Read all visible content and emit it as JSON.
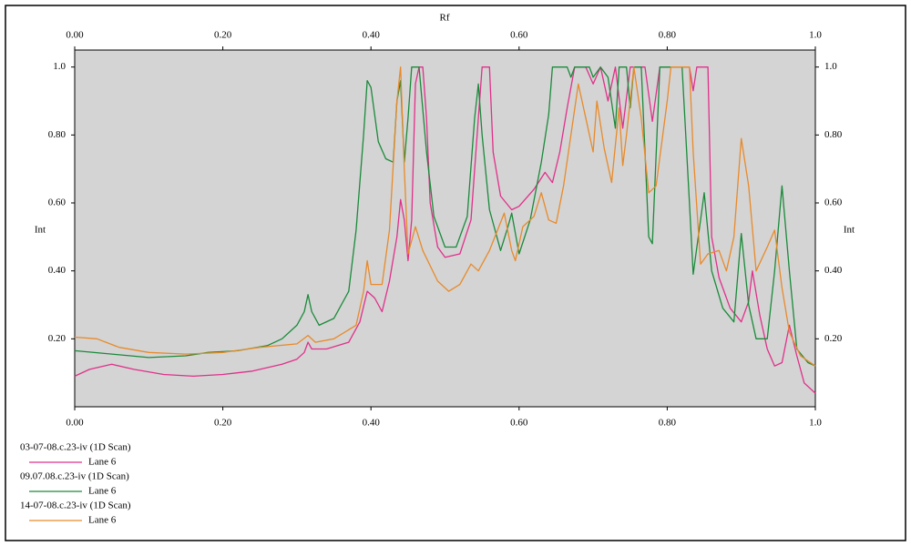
{
  "chart_data": {
    "type": "line",
    "title": "Rf",
    "y_label": "Int",
    "y2_label": "Int",
    "xlim": [
      0,
      1
    ],
    "ylim": [
      0,
      1.05
    ],
    "xticks": [
      {
        "value": 0,
        "label": "0.00"
      },
      {
        "value": 0.2,
        "label": "0.20"
      },
      {
        "value": 0.4,
        "label": "0.40"
      },
      {
        "value": 0.6,
        "label": "0.60"
      },
      {
        "value": 0.8,
        "label": "0.80"
      },
      {
        "value": 1,
        "label": "1.0"
      }
    ],
    "x2ticks": [
      {
        "value": 0,
        "label": "0.00"
      },
      {
        "value": 0.2,
        "label": "0.20"
      },
      {
        "value": 0.4,
        "label": "0.40"
      },
      {
        "value": 0.6,
        "label": "0.60"
      },
      {
        "value": 0.8,
        "label": "0.80"
      },
      {
        "value": 1,
        "label": "1.0"
      }
    ],
    "yticks": [
      {
        "value": 0.2,
        "label": "0.20"
      },
      {
        "value": 0.4,
        "label": "0.40"
      },
      {
        "value": 0.6,
        "label": "0.60"
      },
      {
        "value": 0.8,
        "label": "0.80"
      },
      {
        "value": 1,
        "label": "1.0"
      }
    ],
    "y2ticks": [
      {
        "value": 0.2,
        "label": "0.20"
      },
      {
        "value": 0.4,
        "label": "0.40"
      },
      {
        "value": 0.6,
        "label": "0.60"
      },
      {
        "value": 0.8,
        "label": "0.80"
      },
      {
        "value": 1,
        "label": "1.0"
      }
    ],
    "background": "#d4d4d4",
    "series": [
      {
        "name": "03-07-08.c.23-iv (1D Scan)",
        "lane": "Lane 6",
        "color": "#e0308a",
        "x": [
          0,
          0.02,
          0.05,
          0.08,
          0.12,
          0.16,
          0.2,
          0.24,
          0.28,
          0.3,
          0.31,
          0.315,
          0.32,
          0.34,
          0.37,
          0.385,
          0.395,
          0.405,
          0.415,
          0.425,
          0.435,
          0.44,
          0.445,
          0.45,
          0.455,
          0.46,
          0.465,
          0.47,
          0.475,
          0.48,
          0.49,
          0.5,
          0.52,
          0.535,
          0.545,
          0.55,
          0.56,
          0.565,
          0.575,
          0.59,
          0.6,
          0.62,
          0.635,
          0.645,
          0.655,
          0.665,
          0.675,
          0.69,
          0.7,
          0.71,
          0.72,
          0.73,
          0.74,
          0.75,
          0.77,
          0.78,
          0.79,
          0.83,
          0.835,
          0.84,
          0.855,
          0.86,
          0.87,
          0.885,
          0.9,
          0.91,
          0.915,
          0.925,
          0.935,
          0.945,
          0.955,
          0.965,
          0.975,
          0.985,
          1
        ],
        "values": [
          0.09,
          0.11,
          0.125,
          0.11,
          0.095,
          0.09,
          0.095,
          0.105,
          0.125,
          0.14,
          0.16,
          0.19,
          0.17,
          0.17,
          0.19,
          0.25,
          0.34,
          0.32,
          0.28,
          0.37,
          0.5,
          0.61,
          0.55,
          0.43,
          0.55,
          0.95,
          1,
          1,
          0.85,
          0.6,
          0.47,
          0.44,
          0.45,
          0.55,
          0.85,
          1,
          1,
          0.75,
          0.62,
          0.58,
          0.59,
          0.64,
          0.69,
          0.66,
          0.75,
          0.88,
          1,
          1,
          0.95,
          1,
          0.9,
          1,
          0.82,
          1,
          1,
          0.84,
          1,
          1,
          0.93,
          1,
          1,
          0.5,
          0.38,
          0.29,
          0.25,
          0.31,
          0.4,
          0.27,
          0.17,
          0.12,
          0.13,
          0.24,
          0.15,
          0.07,
          0.04
        ]
      },
      {
        "name": "09.07.08.c.23-iv (1D Scan)",
        "lane": "Lane 6",
        "color": "#1a8a3a",
        "x": [
          0,
          0.05,
          0.1,
          0.15,
          0.18,
          0.22,
          0.26,
          0.28,
          0.3,
          0.31,
          0.315,
          0.32,
          0.33,
          0.35,
          0.37,
          0.38,
          0.39,
          0.395,
          0.4,
          0.41,
          0.42,
          0.43,
          0.435,
          0.44,
          0.445,
          0.45,
          0.455,
          0.465,
          0.475,
          0.485,
          0.5,
          0.515,
          0.53,
          0.54,
          0.545,
          0.55,
          0.56,
          0.575,
          0.585,
          0.59,
          0.6,
          0.615,
          0.63,
          0.64,
          0.645,
          0.665,
          0.67,
          0.675,
          0.695,
          0.7,
          0.71,
          0.72,
          0.73,
          0.735,
          0.745,
          0.75,
          0.755,
          0.765,
          0.775,
          0.78,
          0.79,
          0.82,
          0.83,
          0.835,
          0.845,
          0.85,
          0.86,
          0.875,
          0.89,
          0.9,
          0.91,
          0.92,
          0.935,
          0.945,
          0.955,
          0.965,
          0.975,
          0.99,
          1
        ],
        "values": [
          0.165,
          0.155,
          0.145,
          0.15,
          0.16,
          0.165,
          0.18,
          0.2,
          0.24,
          0.28,
          0.33,
          0.28,
          0.24,
          0.26,
          0.34,
          0.52,
          0.8,
          0.96,
          0.94,
          0.78,
          0.73,
          0.72,
          0.9,
          0.96,
          0.72,
          0.85,
          1,
          1,
          0.75,
          0.56,
          0.47,
          0.47,
          0.56,
          0.85,
          0.95,
          0.8,
          0.58,
          0.46,
          0.53,
          0.57,
          0.45,
          0.55,
          0.72,
          0.86,
          1,
          1,
          0.97,
          1,
          1,
          0.97,
          1,
          0.97,
          0.82,
          1,
          1,
          0.88,
          1,
          1,
          0.5,
          0.48,
          1,
          1,
          0.6,
          0.39,
          0.55,
          0.63,
          0.4,
          0.29,
          0.25,
          0.51,
          0.3,
          0.2,
          0.2,
          0.4,
          0.65,
          0.4,
          0.17,
          0.13,
          0.12
        ]
      },
      {
        "name": "14-07-08.c.23-iv (1D Scan)",
        "lane": "Lane 6",
        "color": "#e88a2a",
        "x": [
          0,
          0.03,
          0.06,
          0.1,
          0.15,
          0.2,
          0.25,
          0.3,
          0.315,
          0.325,
          0.35,
          0.38,
          0.39,
          0.395,
          0.4,
          0.415,
          0.425,
          0.435,
          0.44,
          0.445,
          0.45,
          0.46,
          0.47,
          0.49,
          0.505,
          0.52,
          0.535,
          0.545,
          0.56,
          0.58,
          0.59,
          0.595,
          0.605,
          0.62,
          0.63,
          0.64,
          0.65,
          0.66,
          0.67,
          0.68,
          0.69,
          0.7,
          0.705,
          0.715,
          0.725,
          0.735,
          0.74,
          0.745,
          0.755,
          0.765,
          0.775,
          0.785,
          0.8,
          0.805,
          0.83,
          0.835,
          0.845,
          0.855,
          0.87,
          0.88,
          0.89,
          0.9,
          0.91,
          0.92,
          0.935,
          0.945,
          0.955,
          0.965,
          0.98,
          1
        ],
        "values": [
          0.205,
          0.2,
          0.175,
          0.16,
          0.155,
          0.16,
          0.175,
          0.185,
          0.21,
          0.19,
          0.2,
          0.24,
          0.34,
          0.43,
          0.36,
          0.36,
          0.52,
          0.9,
          1,
          0.7,
          0.45,
          0.53,
          0.46,
          0.37,
          0.34,
          0.36,
          0.42,
          0.4,
          0.46,
          0.57,
          0.46,
          0.43,
          0.53,
          0.56,
          0.63,
          0.55,
          0.54,
          0.65,
          0.8,
          0.95,
          0.85,
          0.75,
          0.9,
          0.76,
          0.66,
          0.88,
          0.71,
          0.8,
          1,
          0.85,
          0.63,
          0.65,
          0.9,
          1,
          1,
          0.75,
          0.42,
          0.45,
          0.46,
          0.4,
          0.5,
          0.79,
          0.65,
          0.4,
          0.47,
          0.52,
          0.35,
          0.22,
          0.15,
          0.12
        ]
      }
    ]
  }
}
